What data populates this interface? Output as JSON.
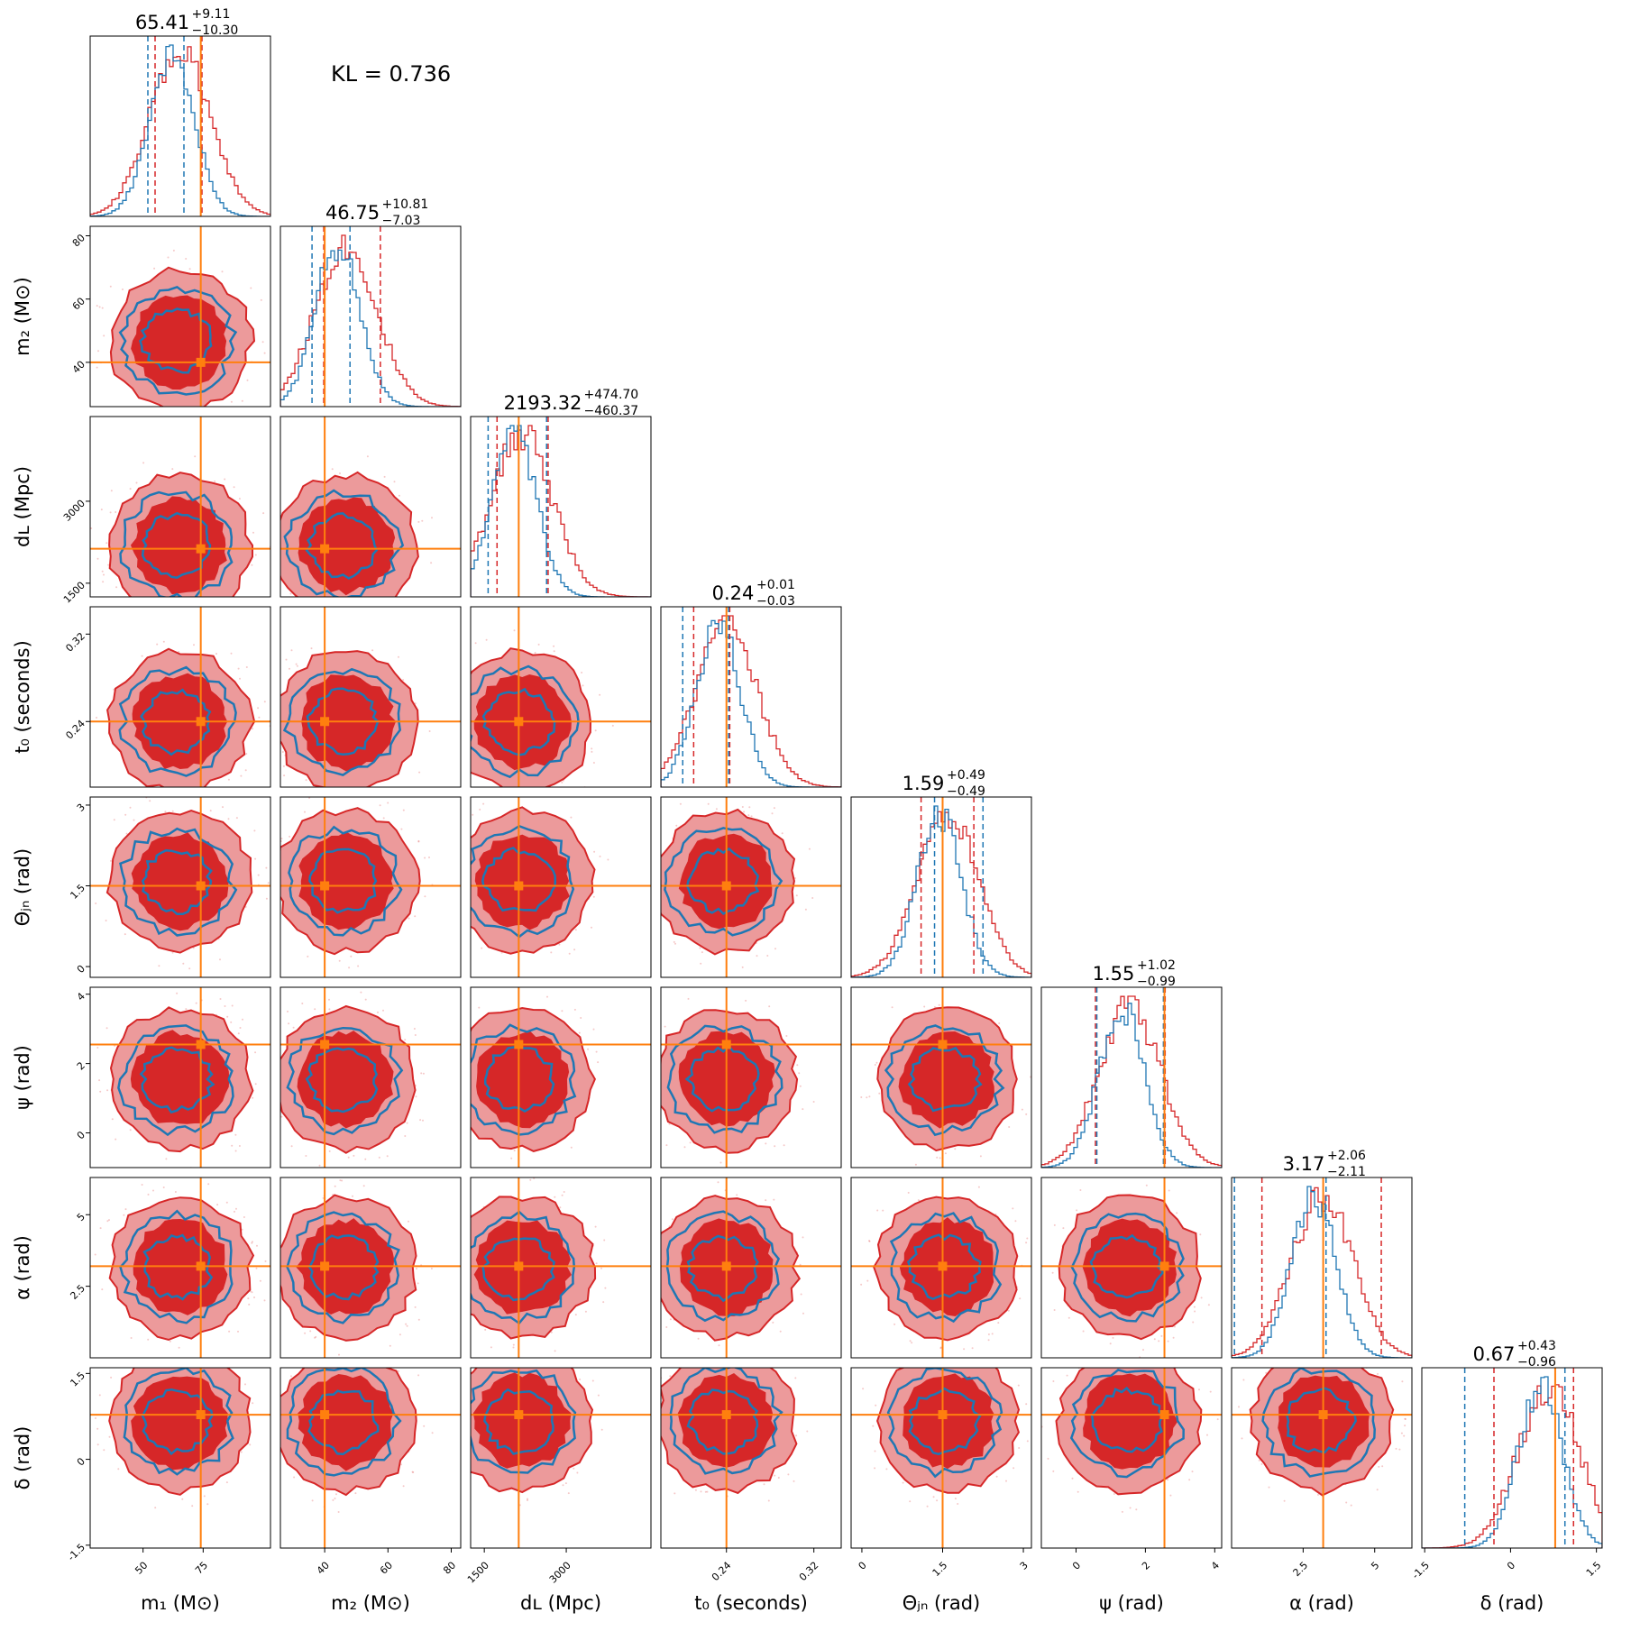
{
  "annotation": "KL = 0.736",
  "colors": {
    "posterior_a": "#d62728",
    "posterior_a_light": "#ec9a9b",
    "posterior_b": "#1f77b4",
    "truth": "#ff7f0e"
  },
  "chart_data": {
    "type": "corner",
    "parameters": [
      {
        "key": "m1",
        "label": "m₁ (M⊙)",
        "range": [
          28,
          103
        ],
        "ticks": [
          50,
          75
        ],
        "truth": 74,
        "median": 65.41,
        "plus": "+9.11",
        "minus": "−10.30",
        "q_a": [
          55,
          74.5
        ],
        "q_b": [
          52,
          67
        ]
      },
      {
        "key": "m2",
        "label": "m₂ (M⊙)",
        "range": [
          26,
          83
        ],
        "ticks": [
          40,
          60,
          80
        ],
        "truth": 40,
        "median": 46.75,
        "plus": "+10.81",
        "minus": "−7.03",
        "q_a": [
          39.7,
          57.6
        ],
        "q_b": [
          36,
          48
        ]
      },
      {
        "key": "dL",
        "label": "dʟ (Mpc)",
        "range": [
          1250,
          4550
        ],
        "ticks": [
          1500,
          3000
        ],
        "truth": 2130,
        "median": 2193.32,
        "plus": "+474.70",
        "minus": "−460.37",
        "q_a": [
          1733,
          2668
        ],
        "q_b": [
          1570,
          2640
        ]
      },
      {
        "key": "t0",
        "label": "t₀ (seconds)",
        "range": [
          0.18,
          0.345
        ],
        "ticks": [
          0.24,
          0.32
        ],
        "truth": 0.24,
        "median": 0.24,
        "plus": "+0.01",
        "minus": "−0.03",
        "q_a": [
          0.21,
          0.243
        ],
        "q_b": [
          0.2,
          0.242
        ]
      },
      {
        "key": "theta_jn",
        "label": "Θⱼₙ (rad)",
        "range": [
          -0.2,
          3.15
        ],
        "ticks": [
          0.0,
          1.5,
          3.0
        ],
        "truth": 1.5,
        "median": 1.59,
        "plus": "+0.49",
        "minus": "−0.49",
        "q_a": [
          1.1,
          2.08
        ],
        "q_b": [
          1.35,
          2.25
        ]
      },
      {
        "key": "psi",
        "label": "ψ (rad)",
        "range": [
          -1.0,
          4.2
        ],
        "ticks": [
          0,
          2,
          4
        ],
        "truth": 2.55,
        "median": 1.55,
        "plus": "+1.02",
        "minus": "−0.99",
        "q_a": [
          0.56,
          2.57
        ],
        "q_b": [
          0.6,
          2.52
        ]
      },
      {
        "key": "alpha",
        "label": "α (rad)",
        "range": [
          0.0,
          6.3
        ],
        "ticks": [
          2.5,
          5.0
        ],
        "truth": 3.2,
        "median": 3.17,
        "plus": "+2.06",
        "minus": "−2.11",
        "q_a": [
          1.06,
          5.23
        ],
        "q_b": [
          0.1,
          3.3
        ]
      },
      {
        "key": "delta",
        "label": "δ (rad)",
        "range": [
          -1.55,
          1.6
        ],
        "ticks": [
          -1.5,
          0.0,
          1.5
        ],
        "truth": 0.78,
        "median": 0.67,
        "plus": "+0.43",
        "minus": "−0.96",
        "q_a": [
          -0.29,
          1.1
        ],
        "q_b": [
          -0.8,
          0.95
        ]
      }
    ]
  }
}
